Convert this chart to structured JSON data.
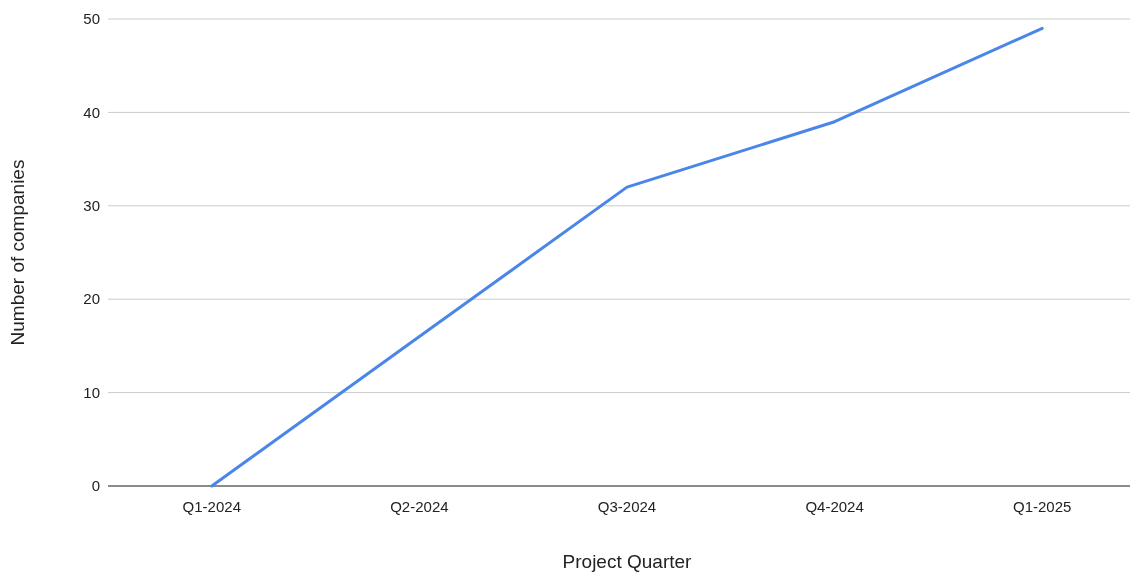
{
  "chart_data": {
    "type": "line",
    "xlabel": "Project Quarter",
    "ylabel": "Number of companies",
    "categories": [
      "Q1-2024",
      "Q2-2024",
      "Q3-2024",
      "Q4-2024",
      "Q1-2025"
    ],
    "series": [
      {
        "color": "#4a86e8",
        "values": [
          0,
          16,
          32,
          39,
          49
        ]
      }
    ],
    "ylim": [
      0,
      50
    ],
    "yticks": [
      0,
      10,
      20,
      30,
      40,
      50
    ],
    "grid": "y",
    "marker": "none",
    "line_style": "solid"
  }
}
